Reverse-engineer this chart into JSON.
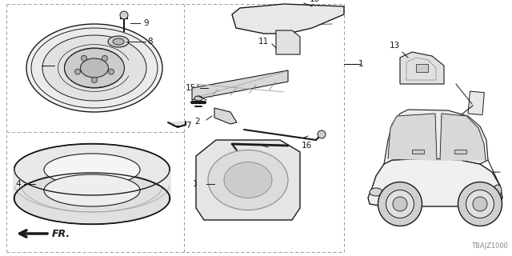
{
  "bg_color": "#ffffff",
  "line_color": "#1a1a1a",
  "dashed_color": "#999999",
  "diagram_code": "TBAJZ1000",
  "fr_label": "FR.",
  "fig_width": 6.4,
  "fig_height": 3.2,
  "dpi": 100
}
